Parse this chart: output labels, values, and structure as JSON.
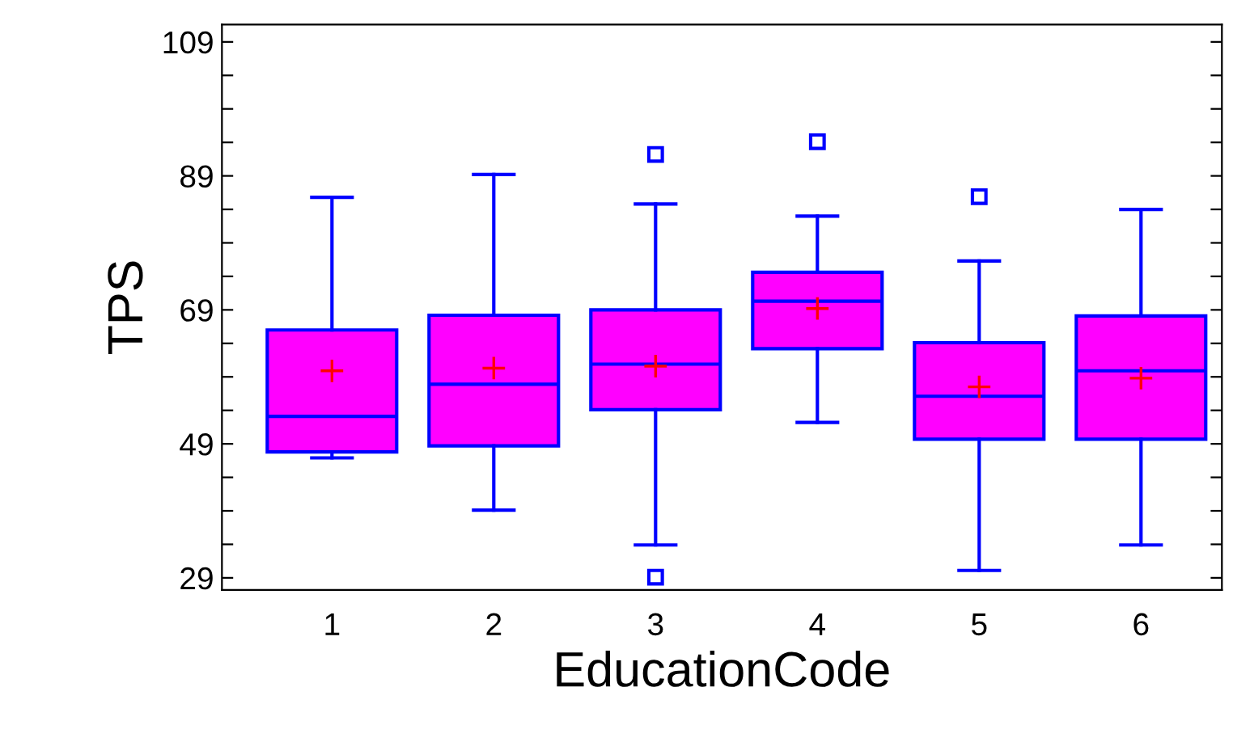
{
  "chart_data": {
    "type": "box",
    "xlabel": "EducationCode",
    "ylabel": "TPS",
    "categories": [
      "1",
      "2",
      "3",
      "4",
      "5",
      "6"
    ],
    "boxes": [
      {
        "low": 46.9,
        "q1": 47.8,
        "median": 53.1,
        "q3": 66.0,
        "high": 85.8,
        "mean": 59.9
      },
      {
        "low": 39.1,
        "q1": 48.7,
        "median": 57.9,
        "q3": 68.2,
        "high": 89.2,
        "mean": 60.3
      },
      {
        "low": 33.9,
        "q1": 54.1,
        "median": 60.9,
        "q3": 69.0,
        "high": 84.8,
        "mean": 60.6,
        "outliers": [
          92.2,
          29.1
        ]
      },
      {
        "low": 52.2,
        "q1": 63.2,
        "median": 70.3,
        "q3": 74.6,
        "high": 83.0,
        "mean": 69.2,
        "outliers": [
          94.1
        ]
      },
      {
        "low": 30.1,
        "q1": 49.7,
        "median": 56.1,
        "q3": 64.1,
        "high": 76.3,
        "mean": 57.5,
        "outliers": [
          85.9
        ]
      },
      {
        "low": 33.9,
        "q1": 49.7,
        "median": 59.9,
        "q3": 68.1,
        "high": 84.0,
        "mean": 58.8
      }
    ],
    "color": "#ff00ff",
    "ylim": [
      27.2,
      111.6
    ],
    "yticks": [
      29,
      {
        "value": 34,
        "label": null
      },
      {
        "value": 39,
        "label": null
      },
      {
        "value": 44,
        "label": null
      },
      49,
      {
        "value": 54,
        "label": null
      },
      {
        "value": 59,
        "label": null
      },
      {
        "value": 64,
        "label": null
      },
      69,
      {
        "value": 74,
        "label": null
      },
      {
        "value": 79,
        "label": null
      },
      {
        "value": 84,
        "label": null
      },
      89,
      {
        "value": 94,
        "label": null
      },
      {
        "value": 99,
        "label": null
      },
      {
        "value": 104,
        "label": null
      },
      109
    ],
    "grid": false
  }
}
